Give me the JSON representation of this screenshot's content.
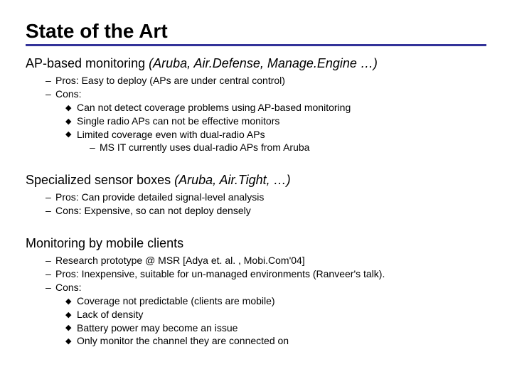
{
  "title": "State of the Art",
  "colors": {
    "underline": "#333399",
    "text": "#000000",
    "background": "#ffffff"
  },
  "typography": {
    "title_fontsize": 28,
    "heading_fontsize": 18,
    "body_fontsize": 14,
    "font_family": "Arial"
  },
  "sections": [
    {
      "heading_plain": "AP-based monitoring  ",
      "heading_italic": "(Aruba, Air.Defense, Manage.Engine …)",
      "items": [
        {
          "level": 1,
          "bullet": "–",
          "text": "Pros:  Easy to deploy (APs are under central control)"
        },
        {
          "level": 1,
          "bullet": "–",
          "text": "Cons:"
        },
        {
          "level": 2,
          "bullet": "◆",
          "text": "Can not detect coverage problems using AP-based monitoring"
        },
        {
          "level": 2,
          "bullet": "◆",
          "text": "Single radio APs can not be effective monitors"
        },
        {
          "level": 2,
          "bullet": "◆",
          "text": "Limited coverage even with dual-radio APs"
        },
        {
          "level": 3,
          "bullet": "–",
          "text": "MS IT currently uses dual-radio APs from Aruba"
        }
      ]
    },
    {
      "heading_plain": "Specialized sensor boxes ",
      "heading_italic": "(Aruba, Air.Tight, …)",
      "items": [
        {
          "level": 1,
          "bullet": "–",
          "text": "Pros: Can provide detailed signal-level analysis"
        },
        {
          "level": 1,
          "bullet": "–",
          "text": "Cons: Expensive, so can not deploy densely"
        }
      ]
    },
    {
      "heading_plain": "Monitoring by mobile clients",
      "heading_italic": "",
      "items": [
        {
          "level": 1,
          "bullet": "–",
          "text": "Research prototype @ MSR [Adya et. al. , Mobi.Com'04]"
        },
        {
          "level": 1,
          "bullet": "–",
          "text": "Pros: Inexpensive, suitable for un-managed environments (Ranveer's talk)."
        },
        {
          "level": 1,
          "bullet": "–",
          "text": "Cons:"
        },
        {
          "level": 2,
          "bullet": "◆",
          "text": "Coverage not predictable (clients are mobile)"
        },
        {
          "level": 2,
          "bullet": "◆",
          "text": "Lack of density"
        },
        {
          "level": 2,
          "bullet": "◆",
          "text": "Battery power may become an issue"
        },
        {
          "level": 2,
          "bullet": "◆",
          "text": "Only monitor the channel they are connected on"
        }
      ]
    }
  ]
}
